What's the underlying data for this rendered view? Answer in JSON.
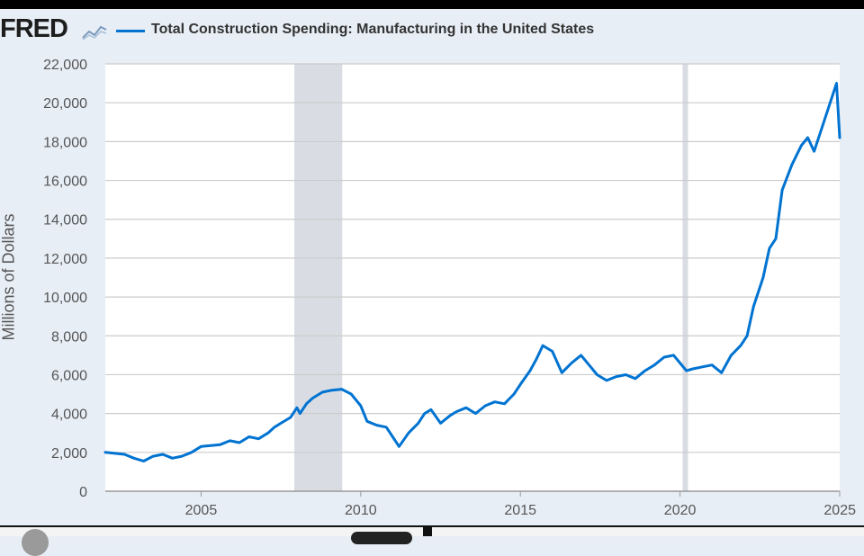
{
  "header": {
    "logo_text": "FRED",
    "logo_icon": "line-chart-icon"
  },
  "colors": {
    "series": "#0073d1",
    "recession": "#d9dde3",
    "grid": "#cccccc",
    "background": "#e8eef6",
    "plot_background": "#ffffff"
  },
  "chart_data": {
    "type": "line",
    "title": "",
    "xlabel": "",
    "ylabel": "Millions of Dollars",
    "xlim": [
      2002.0,
      2025.0
    ],
    "ylim": [
      0,
      22000
    ],
    "yticks": [
      "0",
      "2,000",
      "4,000",
      "6,000",
      "8,000",
      "10,000",
      "12,000",
      "14,000",
      "16,000",
      "18,000",
      "20,000",
      "22,000"
    ],
    "ytick_values": [
      0,
      2000,
      4000,
      6000,
      8000,
      10000,
      12000,
      14000,
      16000,
      18000,
      20000,
      22000
    ],
    "xticks": [
      "2005",
      "2010",
      "2015",
      "2020",
      "2025"
    ],
    "xtick_values": [
      2005,
      2010,
      2015,
      2020,
      2025
    ],
    "grid": true,
    "legend": "top",
    "recessions": [
      {
        "start": 2007.92,
        "end": 2009.42
      },
      {
        "start": 2020.08,
        "end": 2020.25
      }
    ],
    "series": [
      {
        "name": "Total Construction Spending: Manufacturing in the United States",
        "x": [
          2002.0,
          2002.3,
          2002.6,
          2002.9,
          2003.2,
          2003.5,
          2003.8,
          2004.1,
          2004.4,
          2004.7,
          2005.0,
          2005.3,
          2005.6,
          2005.9,
          2006.2,
          2006.5,
          2006.8,
          2007.1,
          2007.3,
          2007.5,
          2007.8,
          2008.0,
          2008.1,
          2008.3,
          2008.5,
          2008.8,
          2009.1,
          2009.4,
          2009.7,
          2010.0,
          2010.2,
          2010.5,
          2010.8,
          2011.0,
          2011.2,
          2011.5,
          2011.8,
          2012.0,
          2012.2,
          2012.5,
          2012.8,
          2013.0,
          2013.3,
          2013.6,
          2013.9,
          2014.2,
          2014.5,
          2014.8,
          2015.0,
          2015.3,
          2015.5,
          2015.7,
          2016.0,
          2016.3,
          2016.6,
          2016.9,
          2017.2,
          2017.4,
          2017.7,
          2018.0,
          2018.3,
          2018.6,
          2018.9,
          2019.2,
          2019.5,
          2019.8,
          2020.0,
          2020.2,
          2020.4,
          2020.7,
          2021.0,
          2021.3,
          2021.6,
          2021.9,
          2022.1,
          2022.3,
          2022.6,
          2022.8,
          2023.0,
          2023.2,
          2023.5,
          2023.8,
          2024.0,
          2024.2,
          2024.5,
          2024.7,
          2024.9,
          2025.0
        ],
        "values": [
          2000,
          1950,
          1900,
          1700,
          1550,
          1800,
          1900,
          1700,
          1800,
          2000,
          2300,
          2350,
          2400,
          2600,
          2500,
          2800,
          2700,
          3000,
          3300,
          3500,
          3800,
          4300,
          4000,
          4500,
          4800,
          5100,
          5200,
          5250,
          5000,
          4400,
          3600,
          3400,
          3300,
          2800,
          2300,
          3000,
          3500,
          4000,
          4200,
          3500,
          3900,
          4100,
          4300,
          4000,
          4400,
          4600,
          4500,
          5000,
          5500,
          6200,
          6800,
          7500,
          7200,
          6100,
          6600,
          7000,
          6400,
          6000,
          5700,
          5900,
          6000,
          5800,
          6200,
          6500,
          6900,
          7000,
          6600,
          6200,
          6300,
          6400,
          6500,
          6100,
          7000,
          7500,
          8000,
          9500,
          11000,
          12500,
          13000,
          15500,
          16800,
          17800,
          18200,
          17500,
          19000,
          20000,
          21000,
          18200
        ]
      }
    ]
  }
}
